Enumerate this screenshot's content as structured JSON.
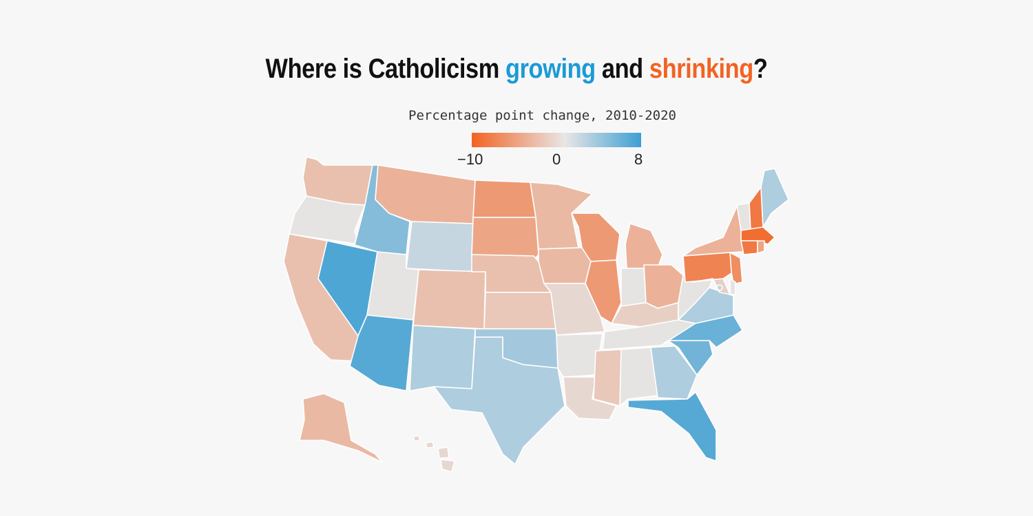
{
  "title": {
    "prefix": "Where is Catholicism ",
    "growing": "growing",
    "middle": " and ",
    "shrinking": "shrinking",
    "suffix": "?"
  },
  "legend": {
    "title": "Percentage point change, 2010-2020",
    "min_label": "−10",
    "mid_label": "0",
    "max_label": "8",
    "min": -10,
    "max": 8,
    "colors": {
      "shrink": "#f26322",
      "neutral": "#e6e3e3",
      "grow": "#3d9fd3"
    }
  },
  "map_data": {
    "measure": "Percentage point change in Catholic share, 2010-2020",
    "states": [
      {
        "code": "WA",
        "change": -2
      },
      {
        "code": "OR",
        "change": 0
      },
      {
        "code": "CA",
        "change": -2
      },
      {
        "code": "NV",
        "change": 7
      },
      {
        "code": "ID",
        "change": 4
      },
      {
        "code": "MT",
        "change": -3
      },
      {
        "code": "WY",
        "change": 1
      },
      {
        "code": "UT",
        "change": 0
      },
      {
        "code": "AZ",
        "change": 6.5
      },
      {
        "code": "CO",
        "change": -2
      },
      {
        "code": "NM",
        "change": 2
      },
      {
        "code": "ND",
        "change": -5
      },
      {
        "code": "SD",
        "change": -4
      },
      {
        "code": "NE",
        "change": -2
      },
      {
        "code": "KS",
        "change": -1.5
      },
      {
        "code": "OK",
        "change": 2.5
      },
      {
        "code": "TX",
        "change": 2
      },
      {
        "code": "MN",
        "change": -2.5
      },
      {
        "code": "IA",
        "change": -2.5
      },
      {
        "code": "MO",
        "change": -0.5
      },
      {
        "code": "AR",
        "change": 0
      },
      {
        "code": "LA",
        "change": -0.5
      },
      {
        "code": "WI",
        "change": -5
      },
      {
        "code": "IL",
        "change": -5
      },
      {
        "code": "MI",
        "change": -3
      },
      {
        "code": "IN",
        "change": 0
      },
      {
        "code": "OH",
        "change": -3
      },
      {
        "code": "KY",
        "change": -1
      },
      {
        "code": "TN",
        "change": 0
      },
      {
        "code": "MS",
        "change": -1.5
      },
      {
        "code": "AL",
        "change": 0
      },
      {
        "code": "GA",
        "change": 2
      },
      {
        "code": "FL",
        "change": 6.5
      },
      {
        "code": "SC",
        "change": 5
      },
      {
        "code": "NC",
        "change": 5.5
      },
      {
        "code": "VA",
        "change": 2
      },
      {
        "code": "WV",
        "change": 0
      },
      {
        "code": "PA",
        "change": -7
      },
      {
        "code": "NY",
        "change": -3
      },
      {
        "code": "NJ",
        "change": -6
      },
      {
        "code": "DE",
        "change": 0
      },
      {
        "code": "MD",
        "change": -1
      },
      {
        "code": "DC",
        "change": 1
      },
      {
        "code": "VT",
        "change": 0
      },
      {
        "code": "NH",
        "change": -8
      },
      {
        "code": "ME",
        "change": 2
      },
      {
        "code": "MA",
        "change": -9
      },
      {
        "code": "CT",
        "change": -8
      },
      {
        "code": "RI",
        "change": -4
      },
      {
        "code": "AK",
        "change": -2.5
      },
      {
        "code": "HI",
        "change": -0.5
      }
    ]
  }
}
